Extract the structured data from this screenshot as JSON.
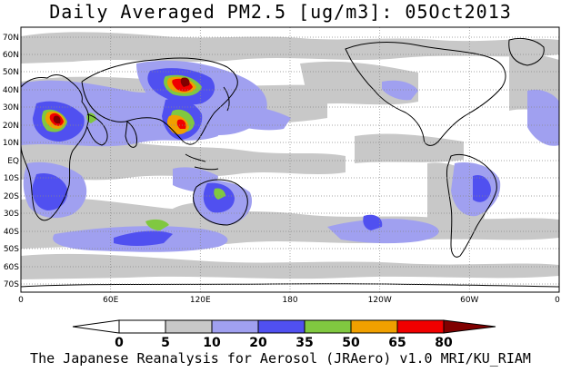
{
  "title": "Daily Averaged PM2.5 [ug/m3]: 05Oct2013",
  "footer": "The Japanese Reanalysis for Aerosol (JRAero) v1.0 MRI/KU_RIAM",
  "lat_labels": [
    "70N",
    "60N",
    "50N",
    "40N",
    "30N",
    "20N",
    "10N",
    "EQ",
    "10S",
    "20S",
    "30S",
    "40S",
    "50S",
    "60S",
    "70S"
  ],
  "lon_labels": [
    "0",
    "60E",
    "120E",
    "180",
    "120W",
    "60W",
    "0"
  ],
  "legend": {
    "labels": [
      "0",
      "5",
      "10",
      "20",
      "35",
      "50",
      "65",
      "80"
    ],
    "colors": [
      "#ffffff",
      "#c8c8c8",
      "#a0a0f0",
      "#5050f0",
      "#80c840",
      "#f0a000",
      "#f00000",
      "#800000"
    ]
  },
  "colors": {
    "gray": "#c8c8c8",
    "lightblue": "#a0a0f0",
    "blue": "#5050f0",
    "green": "#80c840",
    "orange": "#f0a000",
    "red": "#f00000",
    "darkred": "#800000",
    "coast": "#000000"
  }
}
